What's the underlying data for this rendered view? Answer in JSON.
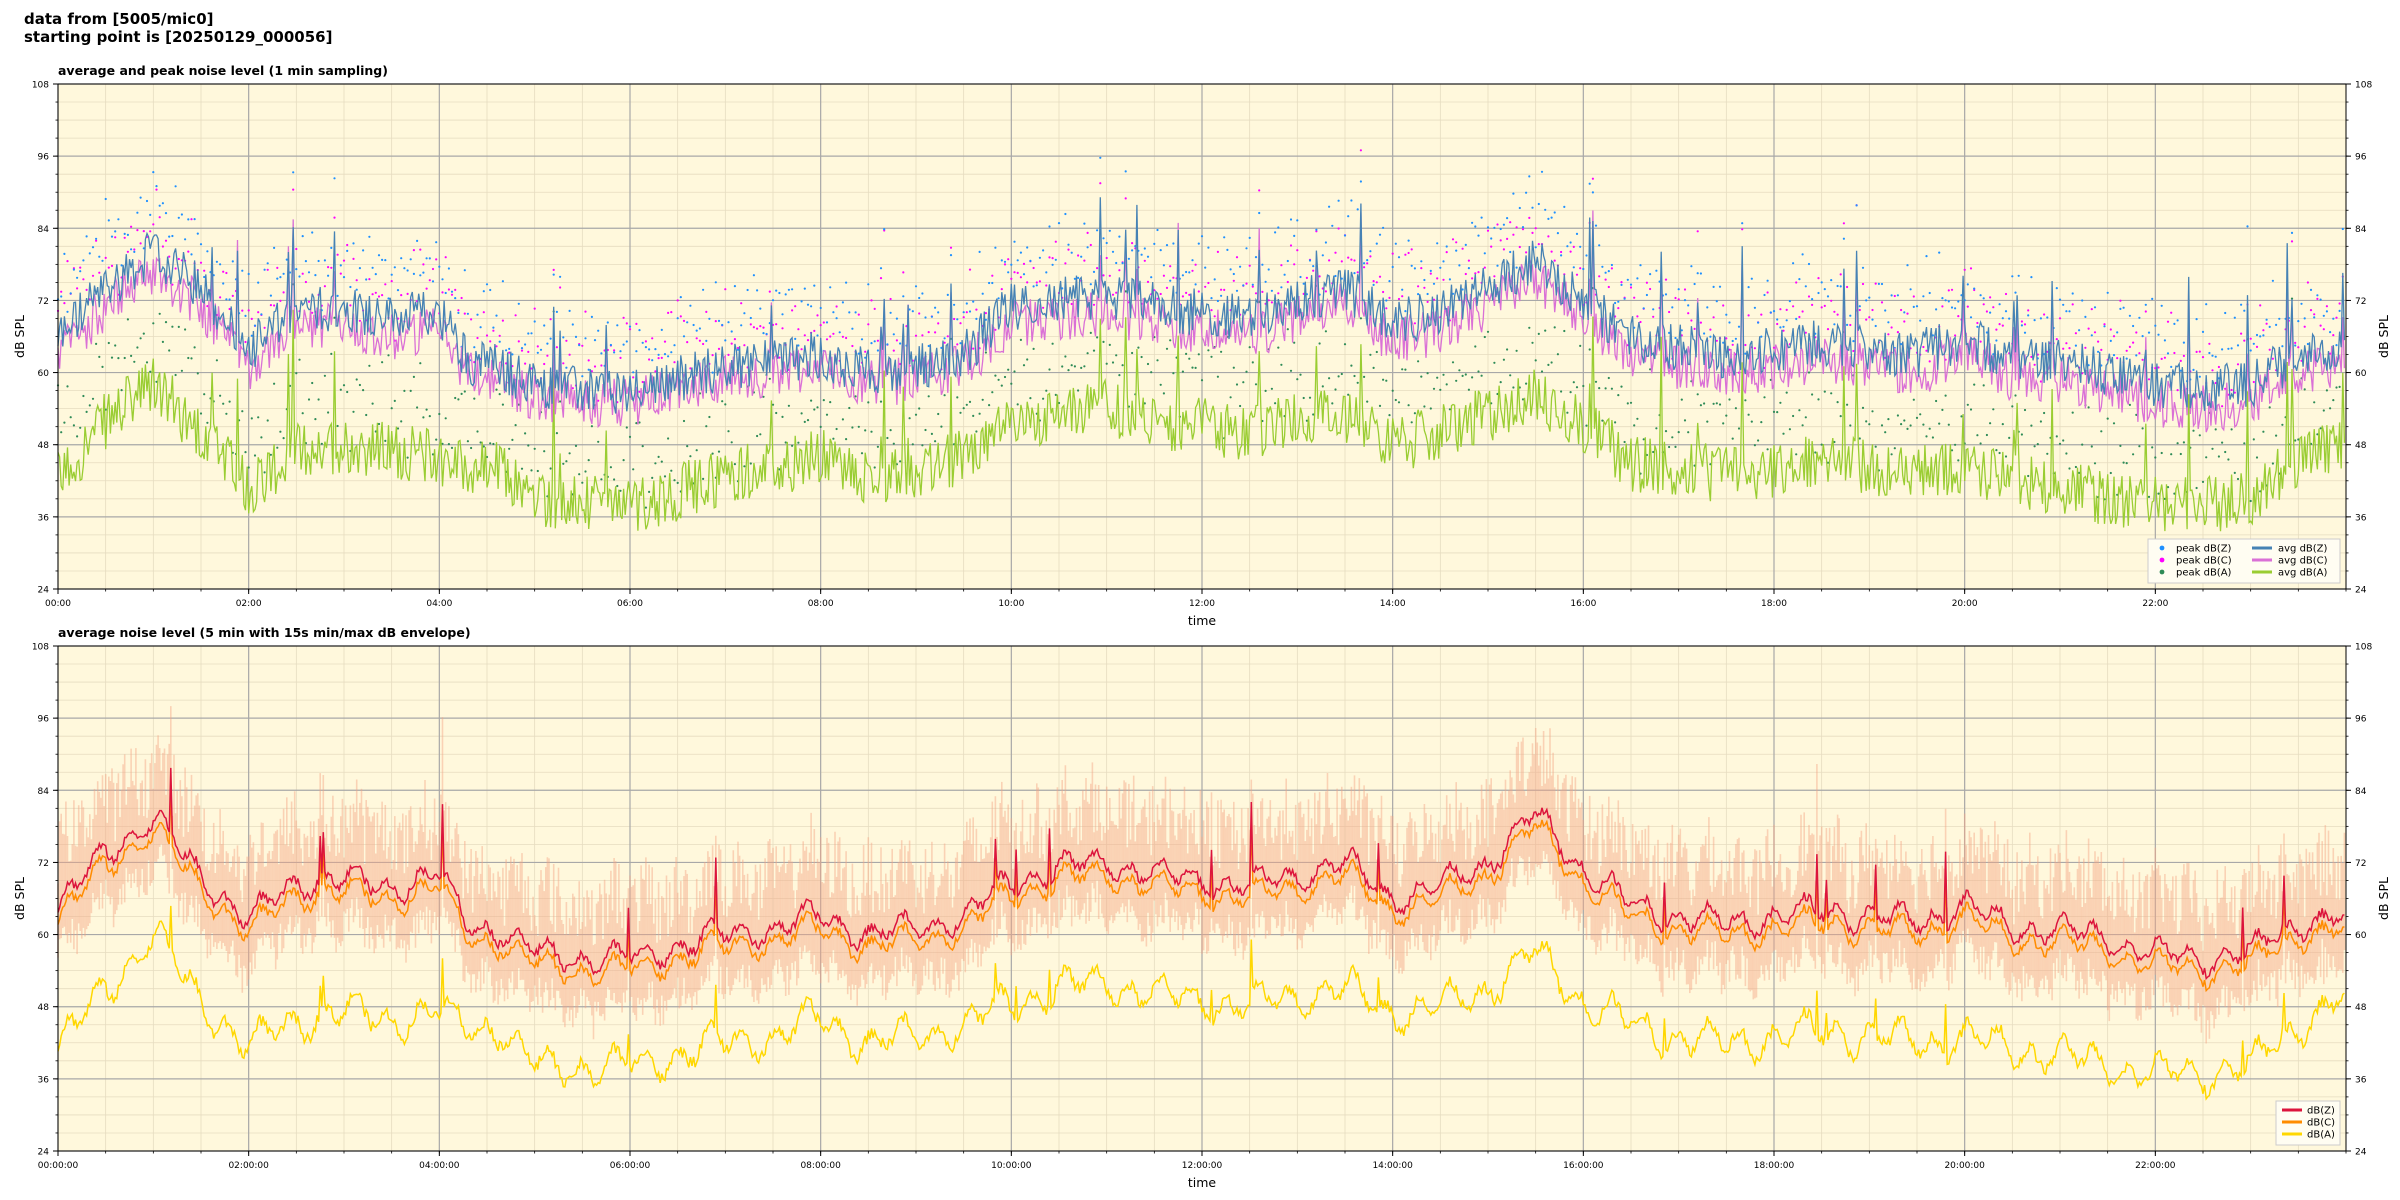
{
  "header": {
    "line1": "data from [5005/mic0]",
    "line2": "starting point is [20250129_000056]"
  },
  "chart_data": [
    {
      "type": "line",
      "title": "average and peak noise level (1 min sampling)",
      "xlabel": "time",
      "ylabel": "dB SPL",
      "x_ticks": [
        "00:00",
        "02:00",
        "04:00",
        "06:00",
        "08:00",
        "10:00",
        "12:00",
        "14:00",
        "16:00",
        "18:00",
        "20:00",
        "22:00"
      ],
      "y_ticks": [
        24,
        36,
        48,
        60,
        72,
        84,
        96,
        108
      ],
      "xlim_hours": [
        0,
        24
      ],
      "ylim": [
        24,
        108
      ],
      "grid": true,
      "legend": "lower-right",
      "legend_columns": 2,
      "colors": {
        "bg": "#fff8dc",
        "z": "#4682b4",
        "c": "#da70d6",
        "a": "#9acd32",
        "peak_z": "#1e90ff",
        "peak_c": "#ff00ff",
        "peak_a": "#2e8b57"
      },
      "legend_labels": {
        "peak_z": "peak dB(Z)",
        "peak_c": "peak dB(C)",
        "peak_a": "peak dB(A)",
        "avg_z": "avg dB(Z)",
        "avg_c": "avg dB(C)",
        "avg_a": "avg dB(A)"
      },
      "series_keypoints": {
        "hours": [
          0,
          0.5,
          1,
          1.5,
          2,
          2.5,
          3,
          3.5,
          4,
          4.3,
          4.6,
          5,
          5.5,
          6,
          6.5,
          7,
          7.5,
          8,
          8.5,
          9,
          9.5,
          10,
          10.5,
          11,
          11.5,
          12,
          12.5,
          13,
          13.5,
          14,
          14.5,
          15,
          15.5,
          16,
          16.5,
          17,
          17.5,
          18,
          18.5,
          19,
          19.5,
          20,
          20.5,
          21,
          21.5,
          22,
          22.5,
          23,
          23.5,
          24
        ],
        "avg_z": [
          66,
          74,
          80,
          74,
          64,
          70,
          71,
          69,
          70,
          62,
          61,
          58,
          57,
          57,
          59,
          61,
          62,
          63,
          60,
          61,
          63,
          71,
          72,
          73,
          71,
          70,
          69,
          72,
          74,
          68,
          70,
          74,
          79,
          72,
          66,
          64,
          63,
          64,
          65,
          64,
          63,
          66,
          62,
          62,
          60,
          58,
          57,
          58,
          63,
          63
        ],
        "avg_c": [
          63,
          71,
          77,
          71,
          61,
          67,
          68,
          66,
          67,
          60,
          59,
          56,
          55,
          55,
          57,
          59,
          60,
          61,
          58,
          59,
          61,
          68,
          69,
          70,
          68,
          67,
          66,
          69,
          71,
          65,
          67,
          71,
          76,
          69,
          63,
          61,
          60,
          61,
          62,
          61,
          60,
          63,
          59,
          59,
          57,
          55,
          54,
          55,
          60,
          61
        ],
        "avg_a": [
          42,
          52,
          58,
          50,
          41,
          47,
          48,
          47,
          46,
          44,
          44,
          39,
          38,
          38,
          40,
          43,
          44,
          46,
          42,
          43,
          46,
          51,
          53,
          54,
          52,
          51,
          50,
          52,
          53,
          48,
          50,
          53,
          56,
          51,
          45,
          44,
          43,
          44,
          45,
          44,
          43,
          44,
          42,
          41,
          39,
          38,
          38,
          39,
          46,
          48
        ],
        "peak_offset": 10
      }
    },
    {
      "type": "line",
      "title": "average noise level (5 min with 15s min/max dB envelope)",
      "xlabel": "time",
      "ylabel": "dB SPL",
      "x_ticks": [
        "00:00:00",
        "02:00:00",
        "04:00:00",
        "06:00:00",
        "08:00:00",
        "10:00:00",
        "12:00:00",
        "14:00:00",
        "16:00:00",
        "18:00:00",
        "20:00:00",
        "22:00:00"
      ],
      "y_ticks": [
        24,
        36,
        48,
        60,
        72,
        84,
        96,
        108
      ],
      "xlim_hours": [
        0,
        24
      ],
      "ylim": [
        24,
        108
      ],
      "grid": true,
      "legend": "lower-right",
      "legend_columns": 1,
      "colors": {
        "bg": "#fff8dc",
        "z": "#dc143c",
        "c": "#ff8c00",
        "a": "#ffd700",
        "env": "#f4a582"
      },
      "legend_labels": {
        "z": "dB(Z)",
        "c": "dB(C)",
        "a": "dB(A)"
      },
      "series_keypoints": {
        "hours": [
          0,
          0.5,
          1,
          1.5,
          2,
          2.5,
          3,
          3.5,
          4,
          4.3,
          4.6,
          5,
          5.5,
          6,
          6.5,
          7,
          7.5,
          8,
          8.5,
          9,
          9.5,
          10,
          10.5,
          11,
          11.5,
          12,
          12.5,
          13,
          13.5,
          14,
          14.5,
          15,
          15.5,
          16,
          16.5,
          17,
          17.5,
          18,
          18.5,
          19,
          19.5,
          20,
          20.5,
          21,
          21.5,
          22,
          22.5,
          23,
          23.5,
          24
        ],
        "z": [
          64,
          74,
          79,
          70,
          62,
          69,
          69,
          68,
          70,
          62,
          61,
          57,
          56,
          56,
          58,
          60,
          61,
          63,
          60,
          61,
          63,
          69,
          71,
          72,
          70,
          69,
          68,
          70,
          72,
          66,
          68,
          72,
          80,
          71,
          65,
          63,
          62,
          63,
          64,
          63,
          62,
          65,
          61,
          61,
          59,
          57,
          56,
          57,
          62,
          63
        ],
        "c": [
          62,
          72,
          77,
          68,
          60,
          67,
          67,
          66,
          68,
          60,
          59,
          55,
          54,
          54,
          56,
          58,
          59,
          61,
          58,
          59,
          61,
          67,
          69,
          70,
          68,
          67,
          66,
          68,
          70,
          64,
          66,
          70,
          78,
          69,
          63,
          61,
          60,
          61,
          62,
          61,
          60,
          63,
          59,
          59,
          57,
          55,
          54,
          55,
          60,
          61
        ],
        "a": [
          41,
          51,
          60,
          49,
          41,
          46,
          47,
          46,
          47,
          45,
          45,
          38,
          38,
          38,
          40,
          42,
          43,
          46,
          42,
          43,
          45,
          49,
          51,
          52,
          50,
          49,
          48,
          50,
          51,
          47,
          48,
          51,
          57,
          49,
          45,
          43,
          42,
          43,
          44,
          43,
          42,
          43,
          41,
          40,
          38,
          37,
          37,
          38,
          45,
          50
        ],
        "env_spread": 10
      }
    }
  ]
}
